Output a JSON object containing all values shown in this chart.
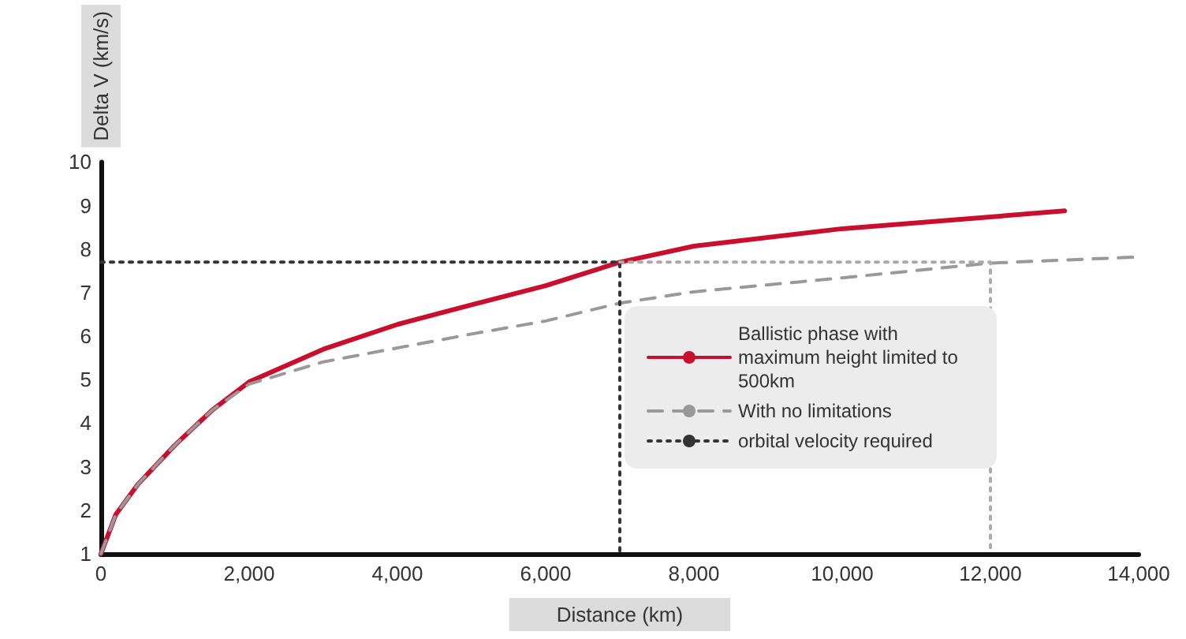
{
  "chart_data": {
    "type": "line",
    "xlabel": "Distance (km)",
    "ylabel": "Delta V (km/s)",
    "xlim": [
      0,
      14000
    ],
    "ylim": [
      1,
      10
    ],
    "xticks": [
      0,
      {
        "value": 2000,
        "label": "2,000"
      },
      {
        "value": 4000,
        "label": "4,000"
      },
      {
        "value": 6000,
        "label": "6,000"
      },
      {
        "value": 8000,
        "label": "8,000"
      },
      {
        "value": 10000,
        "label": "10,000"
      },
      {
        "value": 12000,
        "label": "12,000"
      },
      {
        "value": 14000,
        "label": "14,000"
      }
    ],
    "yticks": [
      1,
      2,
      3,
      4,
      5,
      6,
      7,
      8,
      9,
      10
    ],
    "grid": false,
    "legend": "bottom right",
    "marker": "none",
    "series": [
      {
        "name": "Ballistic phase with maximum height limited to 500km",
        "color": "#c8102e",
        "line_style": "solid",
        "x": [
          0,
          200,
          500,
          1000,
          1500,
          2000,
          3000,
          4000,
          5000,
          6000,
          7000,
          8000,
          10000,
          12000,
          13000
        ],
        "values": [
          1,
          1.9,
          2.6,
          3.5,
          4.3,
          4.95,
          5.7,
          6.27,
          6.72,
          7.16,
          7.7,
          8.07,
          8.47,
          8.74,
          8.88
        ]
      },
      {
        "name": "With no limitations",
        "color": "#999999",
        "line_style": "dashed",
        "x": [
          0,
          200,
          500,
          1000,
          1500,
          2000,
          3000,
          4000,
          5000,
          6000,
          7000,
          8000,
          10000,
          12000,
          14000
        ],
        "values": [
          1,
          1.9,
          2.6,
          3.5,
          4.3,
          4.9,
          5.41,
          5.73,
          6.05,
          6.35,
          6.76,
          7.02,
          7.34,
          7.68,
          7.82
        ]
      },
      {
        "name": "orbital velocity required",
        "color": "#333333",
        "line_style": "dotted",
        "x": [
          0,
          7000,
          7000
        ],
        "values": [
          7.7,
          7.7,
          1
        ]
      },
      {
        "color": "#aaaaaa",
        "line_style": "dotted",
        "x": [
          7000,
          12000,
          12000
        ],
        "values": [
          7.7,
          7.7,
          1
        ]
      }
    ]
  }
}
